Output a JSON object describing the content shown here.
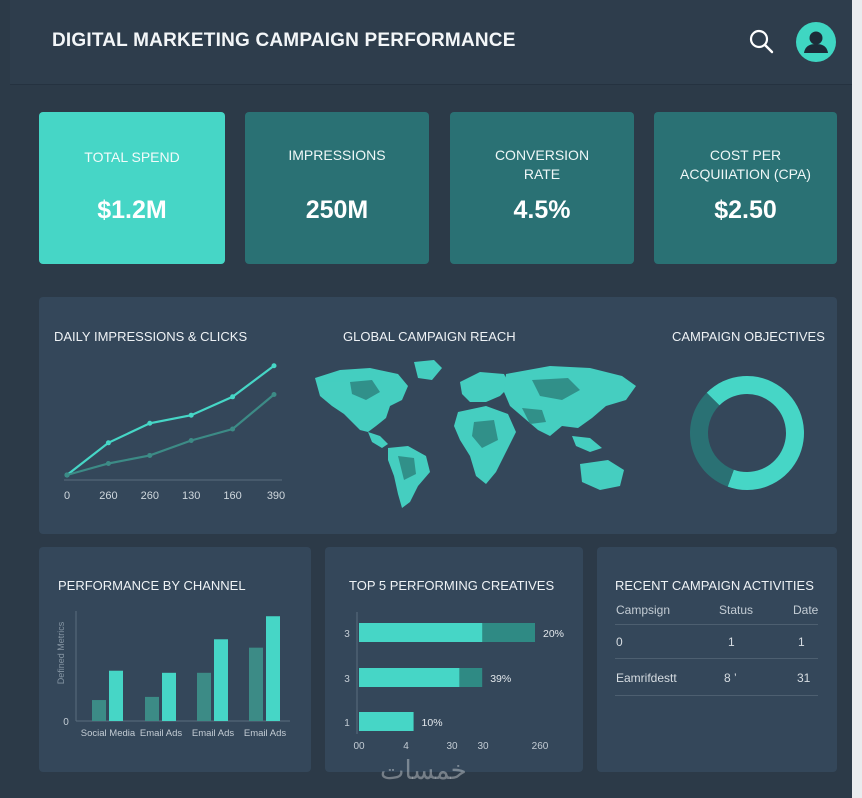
{
  "header": {
    "title": "DIGITAL MARKETING CAMPAIGN PERFORMANCE",
    "search_icon": "search-icon",
    "avatar_icon": "user-avatar-icon"
  },
  "kpis": [
    {
      "label": "TOTAL SPEND",
      "value": "$1.2M"
    },
    {
      "label": "IMPRESSIONS",
      "value": "250M"
    },
    {
      "label_line1": "CONVERSION",
      "label_line2": "RATE",
      "value": "4.5%"
    },
    {
      "label_line1": "COST PER",
      "label_line2": "ACQUIIATION (CPA)",
      "value": "$2.50"
    }
  ],
  "colors": {
    "accent": "#46d6c6",
    "accent_dark": "#2a7174",
    "secondary": "#3c8b86",
    "panel": "#34475a",
    "background": "#2c3a48"
  },
  "panels": {
    "impressions_title": "DAILY IMPRESSIONS & CLICKS",
    "reach_title": "GLOBAL CAMPAIGN REACH",
    "objectives_title": "CAMPAIGN OBJECTIVES",
    "channel_title": "PERFORMANCE BY CHANNEL",
    "creatives_title": "TOP 5 PERFORMING CREATIVES",
    "activities_title": "RECENT CAMPAIGN ACTIVITIES"
  },
  "chart_data": [
    {
      "type": "line",
      "title": "DAILY IMPRESSIONS & CLICKS",
      "x_tick_labels": [
        "0",
        "260",
        "260",
        "130",
        "160",
        "390"
      ],
      "series": [
        {
          "values": [
            0,
            28,
            45,
            52,
            68,
            95
          ]
        },
        {
          "values": [
            0,
            10,
            17,
            30,
            40,
            70
          ]
        }
      ],
      "ylim": [
        0,
        100
      ]
    },
    {
      "type": "pie",
      "title": "CAMPAIGN OBJECTIVES",
      "slices": [
        {
          "value": 68,
          "color": "#46d6c6"
        },
        {
          "value": 32,
          "color": "#2a7174"
        }
      ]
    },
    {
      "type": "bar",
      "title": "PERFORMANCE BY CHANNEL",
      "ylabel": "Defined Metrics",
      "y_tick_labels": [
        "0"
      ],
      "categories": [
        "Social Media",
        "Email Ads",
        "Email Ads",
        "Email Ads"
      ],
      "series": [
        {
          "values": [
            20,
            23,
            46,
            70
          ]
        },
        {
          "values": [
            48,
            46,
            78,
            100
          ]
        }
      ],
      "ylim": [
        0,
        105
      ]
    },
    {
      "type": "bar",
      "orientation": "horizontal",
      "title": "TOP 5 PERFORMING CREATIVES",
      "y_tick_labels": [
        "3",
        "3",
        "1"
      ],
      "x_tick_labels": [
        "00",
        "4",
        "30",
        "30",
        "260"
      ],
      "bars": [
        {
          "value": 20,
          "label": "20%",
          "main_fraction": 0.7,
          "total_fraction": 1.0
        },
        {
          "value": 39,
          "label": "39%",
          "main_fraction": 0.57,
          "total_fraction": 0.7
        },
        {
          "value": 10,
          "label": "10%",
          "main_fraction": 0.31,
          "total_fraction": 0.31
        }
      ]
    }
  ],
  "activities": {
    "headers": [
      "Campsign",
      "Status",
      "Date"
    ],
    "rows": [
      [
        "0",
        "1",
        "1"
      ],
      [
        "Eamrifdestt",
        "8 ’",
        "31"
      ]
    ]
  },
  "watermark": "خمسات"
}
